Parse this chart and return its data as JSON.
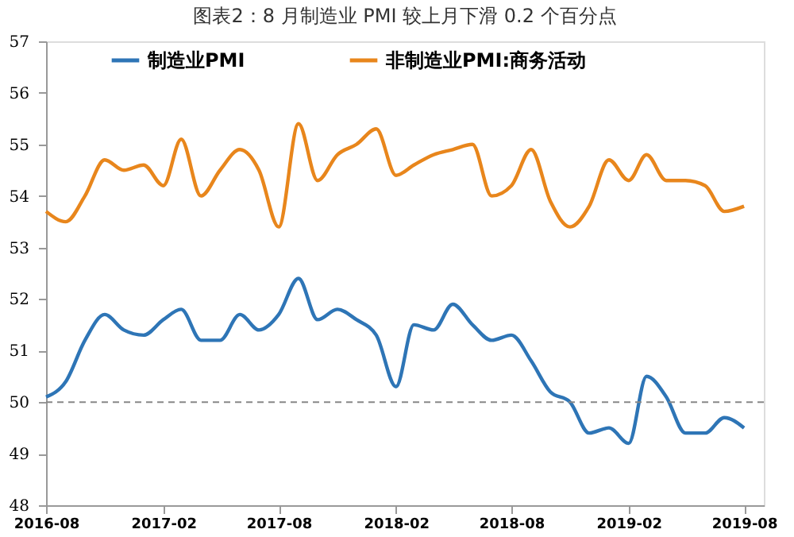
{
  "chart_data": {
    "type": "line",
    "title": "图表2：8 月制造业 PMI 较上月下滑 0.2 个百分点",
    "x": [
      "2016-08",
      "2016-09",
      "2016-10",
      "2016-11",
      "2016-12",
      "2017-01",
      "2017-02",
      "2017-03",
      "2017-04",
      "2017-05",
      "2017-06",
      "2017-07",
      "2017-08",
      "2017-09",
      "2017-10",
      "2017-11",
      "2017-12",
      "2018-01",
      "2018-02",
      "2018-03",
      "2018-04",
      "2018-05",
      "2018-06",
      "2018-07",
      "2018-08",
      "2018-09",
      "2018-10",
      "2018-11",
      "2018-12",
      "2019-01",
      "2019-02",
      "2019-03",
      "2019-04",
      "2019-05",
      "2019-06",
      "2019-07",
      "2019-08"
    ],
    "series": [
      {
        "name": "制造业PMI",
        "color": "#2e75b6",
        "values": [
          50.1,
          50.4,
          51.2,
          51.7,
          51.4,
          51.3,
          51.6,
          51.8,
          51.2,
          51.2,
          51.7,
          51.4,
          51.7,
          52.4,
          51.6,
          51.8,
          51.6,
          51.3,
          50.3,
          51.5,
          51.4,
          51.9,
          51.5,
          51.2,
          51.3,
          50.8,
          50.2,
          50.0,
          49.4,
          49.5,
          49.2,
          50.5,
          50.1,
          49.4,
          49.4,
          49.7,
          49.5
        ]
      },
      {
        "name": "非制造业PMI:商务活动",
        "color": "#e8861c",
        "values": [
          53.7,
          53.5,
          54.0,
          54.7,
          54.5,
          54.6,
          54.2,
          55.1,
          54.0,
          54.5,
          54.9,
          54.5,
          53.4,
          55.4,
          54.3,
          54.8,
          55.0,
          55.3,
          54.4,
          54.6,
          54.8,
          54.9,
          55.0,
          54.0,
          54.2,
          54.9,
          53.9,
          53.4,
          53.8,
          54.7,
          54.3,
          54.8,
          54.3,
          54.3,
          54.2,
          53.7,
          53.8
        ]
      }
    ],
    "xlim": [
      "2016-08",
      "2019-09"
    ],
    "xticks": [
      {
        "value": "2016-08",
        "label": "2016-08"
      },
      {
        "value": "2017-02",
        "label": "2017-02"
      },
      {
        "value": "2017-08",
        "label": "2017-08"
      },
      {
        "value": "2018-02",
        "label": "2018-02"
      },
      {
        "value": "2018-08",
        "label": "2018-08"
      },
      {
        "value": "2019-02",
        "label": "2019-02"
      },
      {
        "value": "2019-08",
        "label": "2019-08"
      }
    ],
    "ylim": [
      48,
      57
    ],
    "yticks": [
      48,
      49,
      50,
      51,
      52,
      53,
      54,
      55,
      56,
      57
    ],
    "ref_lines": [
      {
        "axis": "y",
        "value": 50,
        "color": "#888888",
        "line_style": "dashed"
      }
    ],
    "grid": false,
    "legend": "top",
    "marker": "none",
    "line_style": "solid"
  }
}
